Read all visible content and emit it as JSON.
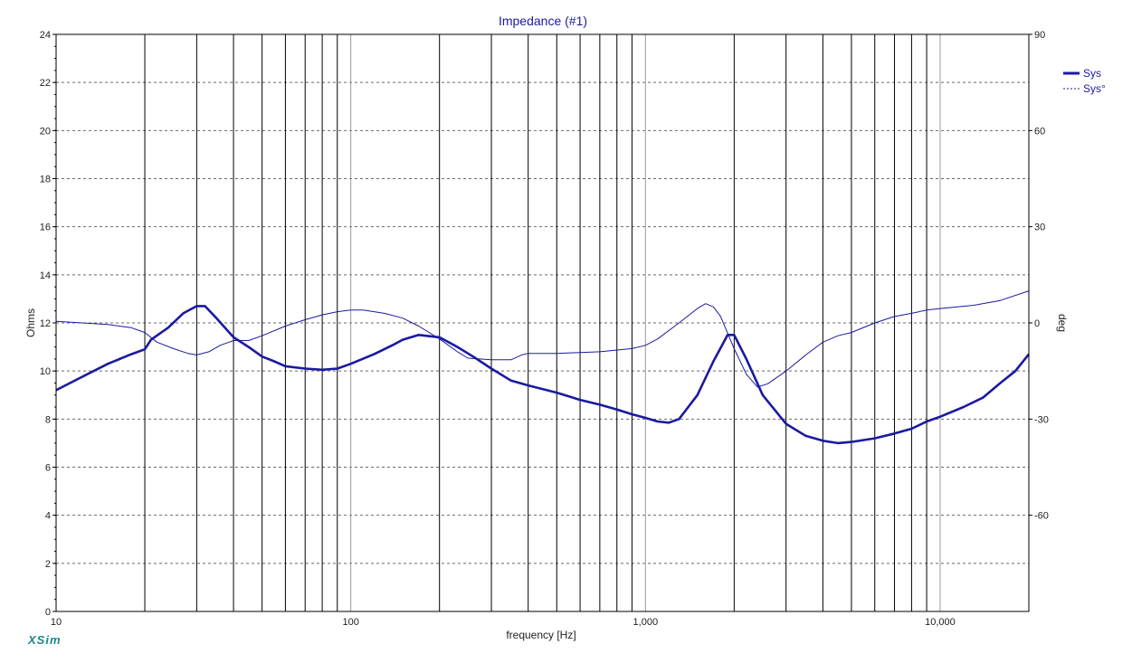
{
  "window": {
    "brand": "XSim"
  },
  "colors": {
    "series": "#1a1aa0",
    "grid": "#000000",
    "background": "#ffffff"
  },
  "chart_data": {
    "type": "line",
    "title": "Impedance (#1)",
    "xlabel": "frequency [Hz]",
    "ylabel": "Ohms",
    "y2label": "deg",
    "xscale": "log",
    "xlim": [
      10,
      20000
    ],
    "ylim": [
      0,
      24
    ],
    "y2lim": [
      -90,
      90
    ],
    "x_tick_labels": [
      "10",
      "100",
      "1,000",
      "10,000"
    ],
    "y_tick_labels": [
      "0",
      "2",
      "4",
      "6",
      "8",
      "10",
      "12",
      "14",
      "16",
      "18",
      "20",
      "22",
      "24"
    ],
    "y2_tick_labels": [
      "-60",
      "-30",
      "0",
      "30",
      "60",
      "90"
    ],
    "grid": true,
    "legend_position": "top-right",
    "series": [
      {
        "name": "Sys",
        "axis": "left",
        "style": "solid-thick",
        "x": [
          10,
          12,
          15,
          18,
          20,
          21,
          24,
          27,
          30,
          32,
          35,
          40,
          45,
          50,
          55,
          60,
          70,
          80,
          90,
          100,
          120,
          140,
          150,
          170,
          200,
          230,
          260,
          300,
          350,
          400,
          500,
          600,
          700,
          800,
          900,
          1000,
          1100,
          1200,
          1300,
          1500,
          1700,
          1900,
          2000,
          2200,
          2500,
          3000,
          3500,
          4000,
          4500,
          5000,
          6000,
          7000,
          8000,
          9000,
          10000,
          12000,
          14000,
          16000,
          18000,
          20000
        ],
        "y": [
          9.2,
          9.7,
          10.3,
          10.7,
          10.9,
          11.3,
          11.8,
          12.4,
          12.7,
          12.7,
          12.2,
          11.4,
          11.0,
          10.6,
          10.4,
          10.2,
          10.1,
          10.05,
          10.1,
          10.3,
          10.7,
          11.1,
          11.3,
          11.5,
          11.4,
          11.0,
          10.6,
          10.1,
          9.6,
          9.4,
          9.1,
          8.8,
          8.6,
          8.4,
          8.2,
          8.05,
          7.9,
          7.85,
          8.0,
          9.0,
          10.4,
          11.5,
          11.5,
          10.5,
          9.0,
          7.8,
          7.3,
          7.1,
          7.0,
          7.05,
          7.2,
          7.4,
          7.6,
          7.9,
          8.1,
          8.5,
          8.9,
          9.5,
          10.0,
          10.7
        ]
      },
      {
        "name": "Sys°",
        "axis": "right",
        "style": "thin",
        "x": [
          10,
          15,
          18,
          20,
          22,
          25,
          28,
          30,
          33,
          36,
          40,
          45,
          50,
          60,
          70,
          80,
          90,
          100,
          110,
          130,
          150,
          170,
          200,
          230,
          250,
          300,
          350,
          380,
          400,
          500,
          700,
          900,
          1000,
          1100,
          1300,
          1500,
          1600,
          1700,
          1800,
          2000,
          2200,
          2400,
          2600,
          3000,
          3500,
          4000,
          4500,
          5000,
          6000,
          7000,
          8000,
          9000,
          10000,
          13000,
          16000,
          20000
        ],
        "y": [
          0.5,
          -0.5,
          -1.5,
          -3,
          -6,
          -8,
          -9.5,
          -10,
          -9,
          -7,
          -5.5,
          -5.5,
          -4,
          -1,
          1,
          2.5,
          3.5,
          4,
          4,
          3,
          1.5,
          -1,
          -5,
          -9,
          -11,
          -11.5,
          -11.5,
          -10,
          -9.5,
          -9.5,
          -9,
          -8,
          -7,
          -5,
          0,
          4.5,
          6,
          5,
          2,
          -8,
          -16,
          -20,
          -19,
          -15,
          -10,
          -6,
          -4,
          -3,
          0,
          2,
          3,
          4,
          4.5,
          5.5,
          7,
          10
        ]
      }
    ]
  }
}
